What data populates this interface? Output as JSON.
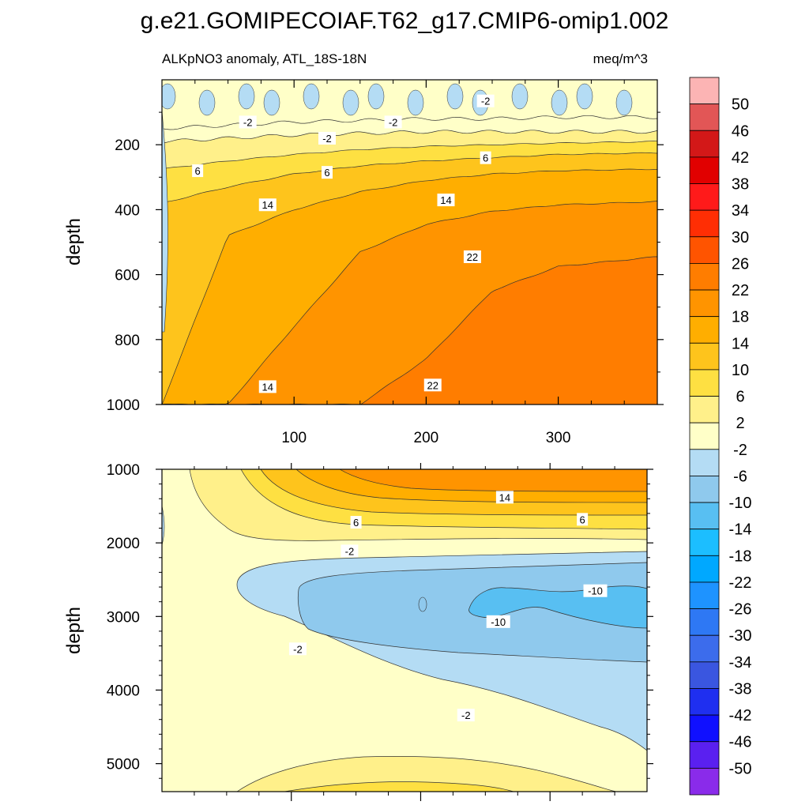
{
  "figure": {
    "title": "g.e21.GOMIPECOIAF.T62_g17.CMIP6-omip1.002",
    "subtitle_left": "ALKpNO3 anomaly, ATL_18S-18N",
    "subtitle_right": "meq/m^3"
  },
  "chart_data": [
    {
      "type": "contour",
      "panel": "upper",
      "title": "ALKpNO3 anomaly, ATL_18S-18N",
      "units": "meq/m^3",
      "xlabel": "",
      "ylabel": "depth",
      "xlim": [
        0,
        375
      ],
      "ylim": [
        1000,
        0
      ],
      "xticks": [
        100,
        200,
        300
      ],
      "yticks": [
        200,
        400,
        600,
        800,
        1000
      ],
      "band_boundaries": [
        {
          "level": -2,
          "depths": [
            150,
            140,
            130,
            125,
            120,
            120,
            115,
            115
          ]
        },
        {
          "level": 2,
          "depths": [
            190,
            180,
            170,
            165,
            160,
            160,
            160,
            160
          ]
        },
        {
          "level": 6,
          "depths": [
            275,
            250,
            230,
            215,
            205,
            200,
            195,
            190
          ]
        },
        {
          "level": 10,
          "depths": [
            380,
            330,
            290,
            265,
            250,
            240,
            230,
            225
          ]
        },
        {
          "level": 14,
          "depths": [
            1000,
            480,
            400,
            345,
            310,
            290,
            280,
            275
          ]
        },
        {
          "level": 18,
          "depths": [
            1000,
            1000,
            760,
            530,
            445,
            405,
            385,
            375
          ]
        },
        {
          "level": 22,
          "depths": [
            1000,
            1000,
            1000,
            1000,
            860,
            650,
            575,
            545
          ]
        }
      ],
      "band_x": [
        0,
        50,
        100,
        150,
        200,
        250,
        300,
        375
      ],
      "contour_labels": [
        {
          "text": "-2",
          "x": 65,
          "y": 130
        },
        {
          "text": "-2",
          "x": 125,
          "y": 180
        },
        {
          "text": "-2",
          "x": 175,
          "y": 130
        },
        {
          "text": "-2",
          "x": 245,
          "y": 65
        },
        {
          "text": "6",
          "x": 27,
          "y": 280
        },
        {
          "text": "6",
          "x": 125,
          "y": 285
        },
        {
          "text": "6",
          "x": 245,
          "y": 240
        },
        {
          "text": "14",
          "x": 80,
          "y": 385
        },
        {
          "text": "14",
          "x": 215,
          "y": 370
        },
        {
          "text": "14",
          "x": 80,
          "y": 945
        },
        {
          "text": "22",
          "x": 235,
          "y": 545
        },
        {
          "text": "22",
          "x": 205,
          "y": 940
        }
      ]
    },
    {
      "type": "contour",
      "panel": "lower",
      "title": "",
      "xlabel": "",
      "ylabel": "depth",
      "xlim": [
        0,
        375
      ],
      "ylim": [
        5380,
        1000
      ],
      "yticks": [
        1000,
        2000,
        3000,
        4000,
        5000
      ],
      "contour_labels": [
        {
          "text": "14",
          "x": 265,
          "y": 1380
        },
        {
          "text": "6",
          "x": 150,
          "y": 1720
        },
        {
          "text": "6",
          "x": 325,
          "y": 1680
        },
        {
          "text": "-2",
          "x": 145,
          "y": 2110
        },
        {
          "text": "-10",
          "x": 335,
          "y": 2650
        },
        {
          "text": "-10",
          "x": 260,
          "y": 3070
        },
        {
          "text": "-2",
          "x": 105,
          "y": 3440
        },
        {
          "text": "-2",
          "x": 235,
          "y": 4340
        }
      ]
    }
  ],
  "colorbar": {
    "levels": [
      "50",
      "46",
      "42",
      "38",
      "34",
      "30",
      "26",
      "22",
      "18",
      "14",
      "10",
      "6",
      "2",
      "-2",
      "-6",
      "-10",
      "-14",
      "-18",
      "-22",
      "-26",
      "-30",
      "-34",
      "-38",
      "-42",
      "-46",
      "-50"
    ],
    "colors": [
      "#fcb4b4",
      "#e25656",
      "#d31818",
      "#e10000",
      "#ff1a1a",
      "#ff2e04",
      "#ff5400",
      "#ff7d00",
      "#ff9400",
      "#ffae00",
      "#fec41c",
      "#fee042",
      "#fff08a",
      "#ffffc8",
      "#b4dcf4",
      "#8fc9ed",
      "#58bff2",
      "#1cbeff",
      "#00a8ff",
      "#1e93ff",
      "#2e78f4",
      "#3c6cec",
      "#3a56e0",
      "#1f2ff0",
      "#1010ff",
      "#5a20f0",
      "#8a2bea"
    ]
  }
}
